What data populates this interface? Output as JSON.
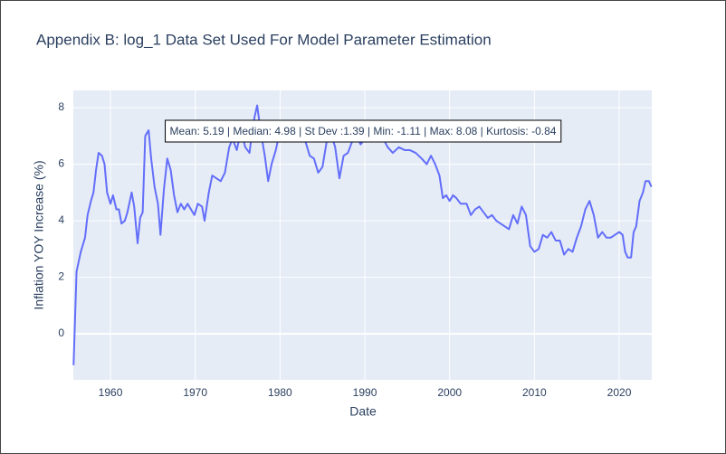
{
  "chart_data": {
    "type": "line",
    "title": "Appendix B: log_1 Data Set Used For Model Parameter Estimation",
    "xlabel": "Date",
    "ylabel": "Inflation YOY Increase (%)",
    "annotation": "Mean: 5.19 | Median: 4.98 | St Dev :1.39 | Min: -1.11 | Max: 8.08 | Kurtosis: -0.84",
    "grid": true,
    "background": "#e5ecf6",
    "xlim": [
      1955.62,
      2023.84
    ],
    "xticks": [
      1960,
      1970,
      1980,
      1990,
      2000,
      2010,
      2020
    ],
    "ylim": [
      -1.63,
      8.61
    ],
    "yticks": [
      0,
      2,
      4,
      6,
      8
    ],
    "x": [
      1955.65,
      1956.0,
      1956.5,
      1957.0,
      1957.3,
      1957.7,
      1958.0,
      1958.3,
      1958.6,
      1959.0,
      1959.3,
      1959.6,
      1960.0,
      1960.3,
      1960.7,
      1961.0,
      1961.3,
      1961.7,
      1962.0,
      1962.5,
      1962.8,
      1963.2,
      1963.5,
      1963.8,
      1964.1,
      1964.5,
      1964.8,
      1965.2,
      1965.6,
      1965.9,
      1966.3,
      1966.7,
      1967.1,
      1967.5,
      1967.9,
      1968.3,
      1968.7,
      1969.1,
      1969.5,
      1969.9,
      1970.3,
      1970.8,
      1971.1,
      1971.6,
      1972.0,
      1972.5,
      1973.0,
      1973.5,
      1974.0,
      1974.4,
      1974.9,
      1975.4,
      1975.9,
      1976.4,
      1976.8,
      1977.3,
      1977.7,
      1978.2,
      1978.6,
      1979.0,
      1979.5,
      1980.0,
      1980.5,
      1981.0,
      1981.5,
      1982.0,
      1982.5,
      1983.0,
      1983.5,
      1984.0,
      1984.5,
      1985.0,
      1985.5,
      1986.0,
      1986.5,
      1987.0,
      1987.5,
      1988.0,
      1988.5,
      1989.0,
      1989.5,
      1990.0,
      1990.5,
      1991.0,
      1992.0,
      1992.7,
      1993.3,
      1994.0,
      1994.7,
      1995.3,
      1996.0,
      1996.7,
      1997.3,
      1997.8,
      1998.3,
      1998.8,
      1999.2,
      1999.6,
      2000.0,
      2000.4,
      2000.8,
      2001.3,
      2002.0,
      2002.5,
      2003.0,
      2003.5,
      2004.0,
      2004.5,
      2005.0,
      2005.5,
      2006.0,
      2006.5,
      2007.0,
      2007.5,
      2008.0,
      2008.5,
      2009.0,
      2009.5,
      2010.0,
      2010.5,
      2011.0,
      2011.5,
      2012.0,
      2012.5,
      2013.0,
      2013.5,
      2014.0,
      2014.5,
      2015.0,
      2015.5,
      2016.0,
      2016.5,
      2017.0,
      2017.5,
      2018.0,
      2018.5,
      2019.0,
      2019.5,
      2020.0,
      2020.4,
      2020.7,
      2021.0,
      2021.4,
      2021.7,
      2022.0,
      2022.4,
      2022.8,
      2023.1,
      2023.5,
      2023.8
    ],
    "series": [
      {
        "color": "#636efa",
        "values": [
          -1.11,
          2.2,
          2.9,
          3.4,
          4.2,
          4.7,
          5.0,
          5.8,
          6.4,
          6.3,
          6.0,
          5.0,
          4.6,
          4.9,
          4.4,
          4.4,
          3.9,
          4.0,
          4.3,
          5.0,
          4.5,
          3.2,
          4.1,
          4.3,
          7.0,
          7.2,
          6.2,
          5.2,
          4.6,
          3.5,
          5.1,
          6.2,
          5.8,
          4.9,
          4.3,
          4.6,
          4.4,
          4.6,
          4.4,
          4.2,
          4.6,
          4.5,
          4.0,
          5.0,
          5.6,
          5.5,
          5.4,
          5.7,
          6.6,
          6.9,
          6.5,
          7.2,
          6.6,
          6.4,
          7.4,
          8.08,
          7.2,
          6.3,
          5.4,
          6.0,
          6.5,
          7.2,
          6.8,
          7.1,
          6.8,
          6.9,
          7.0,
          6.8,
          6.3,
          6.2,
          5.7,
          5.9,
          6.8,
          7.1,
          6.6,
          5.5,
          6.3,
          6.4,
          6.8,
          7.0,
          6.7,
          6.9,
          7.0,
          7.2,
          7.0,
          6.6,
          6.4,
          6.6,
          6.5,
          6.5,
          6.4,
          6.2,
          6.0,
          6.3,
          6.0,
          5.6,
          4.8,
          4.9,
          4.7,
          4.9,
          4.8,
          4.6,
          4.6,
          4.2,
          4.4,
          4.5,
          4.3,
          4.1,
          4.2,
          4.0,
          3.9,
          3.8,
          3.7,
          4.2,
          3.9,
          4.5,
          4.2,
          3.1,
          2.9,
          3.0,
          3.5,
          3.4,
          3.6,
          3.3,
          3.3,
          2.8,
          3.0,
          2.9,
          3.4,
          3.8,
          4.4,
          4.7,
          4.2,
          3.4,
          3.6,
          3.4,
          3.4,
          3.5,
          3.6,
          3.5,
          2.9,
          2.7,
          2.7,
          3.6,
          3.8,
          4.7,
          5.0,
          5.4,
          5.4,
          5.2
        ]
      }
    ]
  }
}
